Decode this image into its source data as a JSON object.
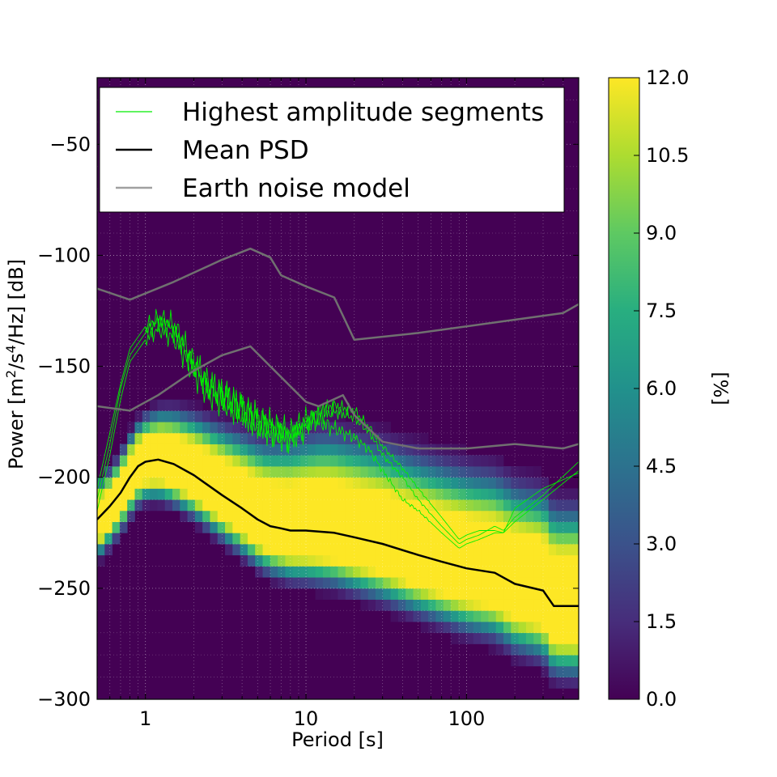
{
  "chart_data": {
    "type": "heatmap",
    "title": "",
    "xlabel": "Period [s]",
    "ylabel_parts": {
      "a": "Power [m",
      "b": "2",
      "c": "/s",
      "d": "4",
      "e": "/Hz] [dB]"
    },
    "colorbar_label": "[%]",
    "x_scale": "log",
    "xlim": [
      0.5,
      500
    ],
    "ylim": [
      -300,
      -20
    ],
    "x_ticks": [
      {
        "value": 1,
        "label": "1"
      },
      {
        "value": 10,
        "label": "10"
      },
      {
        "value": 100,
        "label": "100"
      }
    ],
    "y_ticks": [
      {
        "value": -50,
        "label": "−50"
      },
      {
        "value": -100,
        "label": "−100"
      },
      {
        "value": -150,
        "label": "−150"
      },
      {
        "value": -200,
        "label": "−200"
      },
      {
        "value": -250,
        "label": "−250"
      },
      {
        "value": -300,
        "label": "−300"
      }
    ],
    "colorbar": {
      "range": [
        0,
        12
      ],
      "ticks": [
        {
          "value": 0,
          "label": "0.0"
        },
        {
          "value": 1.5,
          "label": "1.5"
        },
        {
          "value": 3,
          "label": "3.0"
        },
        {
          "value": 4.5,
          "label": "4.5"
        },
        {
          "value": 6,
          "label": "6.0"
        },
        {
          "value": 7.5,
          "label": "7.5"
        },
        {
          "value": 9,
          "label": "9.0"
        },
        {
          "value": 10.5,
          "label": "10.5"
        },
        {
          "value": 12,
          "label": "12.0"
        }
      ],
      "colormap": "viridis"
    },
    "legend": {
      "placement": "top-left",
      "entries": [
        {
          "label": "Highest amplitude segments",
          "color": "#00ee00"
        },
        {
          "label": "Mean PSD",
          "color": "#000000"
        },
        {
          "label": "Earth noise model",
          "color": "#a0a0a0"
        }
      ]
    },
    "series": [
      {
        "name": "Mean PSD",
        "color": "#000000",
        "x": [
          0.5,
          0.6,
          0.7,
          0.8,
          0.9,
          1.0,
          1.2,
          1.5,
          2,
          3,
          4,
          5,
          6,
          7,
          8,
          10,
          15,
          20,
          30,
          50,
          70,
          100,
          150,
          200,
          300,
          350,
          500
        ],
        "y": [
          -219,
          -213,
          -207,
          -200,
          -195,
          -193,
          -192,
          -194,
          -199,
          -208,
          -214,
          -219,
          -222,
          -223,
          -224,
          -224,
          -225,
          -227,
          -230,
          -235,
          -238,
          -241,
          -243,
          -248,
          -251,
          -258,
          -258
        ]
      },
      {
        "name": "Earth noise model (high)",
        "color": "#707070",
        "x": [
          0.5,
          0.8,
          1.5,
          3,
          4.5,
          6,
          7,
          10,
          15,
          20,
          50,
          100,
          200,
          400,
          500
        ],
        "y": [
          -115,
          -120,
          -112,
          -102,
          -97,
          -101,
          -109,
          -114,
          -119,
          -138,
          -135,
          -132,
          -129,
          -126,
          -122
        ]
      },
      {
        "name": "Earth noise model (low)",
        "color": "#707070",
        "x": [
          0.5,
          0.8,
          1.2,
          2,
          3,
          4.5,
          6,
          10,
          12,
          17,
          20,
          30,
          50,
          100,
          200,
          400,
          500
        ],
        "y": [
          -168,
          -170,
          -163,
          -152,
          -145,
          -141,
          -150,
          -166,
          -168,
          -163,
          -172,
          -184,
          -187,
          -187,
          -185,
          -187,
          -185
        ]
      },
      {
        "name": "Highest amplitude segments 1",
        "color": "#00ee00",
        "x": [
          0.5,
          0.6,
          0.7,
          0.8,
          1.0,
          1.2,
          1.5,
          2,
          2.5,
          3,
          4,
          5,
          6,
          7,
          8,
          10,
          12,
          15,
          20,
          25,
          30,
          40,
          50,
          70,
          90,
          100,
          120,
          150,
          170,
          200,
          300,
          500
        ],
        "y": [
          -210,
          -185,
          -160,
          -145,
          -135,
          -130,
          -134,
          -150,
          -160,
          -163,
          -170,
          -175,
          -178,
          -180,
          -182,
          -176,
          -172,
          -170,
          -173,
          -180,
          -190,
          -200,
          -210,
          -222,
          -230,
          -228,
          -226,
          -222,
          -224,
          -218,
          -208,
          -193
        ]
      },
      {
        "name": "Highest amplitude segments 2",
        "color": "#00ee00",
        "x": [
          0.5,
          0.6,
          0.7,
          0.8,
          1.0,
          1.2,
          1.5,
          2,
          2.5,
          3,
          4,
          5,
          6,
          7,
          8,
          10,
          12,
          15,
          20,
          25,
          30,
          40,
          50,
          70,
          90,
          100,
          120,
          150,
          170,
          200,
          300,
          500
        ],
        "y": [
          -205,
          -180,
          -158,
          -142,
          -132,
          -128,
          -131,
          -148,
          -158,
          -162,
          -168,
          -173,
          -176,
          -178,
          -180,
          -174,
          -175,
          -178,
          -182,
          -188,
          -197,
          -210,
          -215,
          -225,
          -232,
          -230,
          -228,
          -225,
          -225,
          -220,
          -210,
          -197
        ]
      },
      {
        "name": "Highest amplitude segments 3",
        "color": "#00ee00",
        "x": [
          0.5,
          0.6,
          0.7,
          0.8,
          1.0,
          1.2,
          1.5,
          2,
          2.5,
          3,
          4,
          5,
          6,
          7,
          8,
          10,
          12,
          15,
          20,
          25,
          30,
          40,
          50,
          70,
          90,
          100,
          120,
          150,
          170,
          200,
          300,
          500
        ],
        "y": [
          -215,
          -190,
          -165,
          -148,
          -138,
          -133,
          -137,
          -153,
          -163,
          -166,
          -172,
          -177,
          -180,
          -182,
          -183,
          -178,
          -170,
          -168,
          -170,
          -178,
          -186,
          -196,
          -205,
          -218,
          -228,
          -226,
          -224,
          -224,
          -225,
          -214,
          -205,
          -198
        ]
      }
    ]
  }
}
